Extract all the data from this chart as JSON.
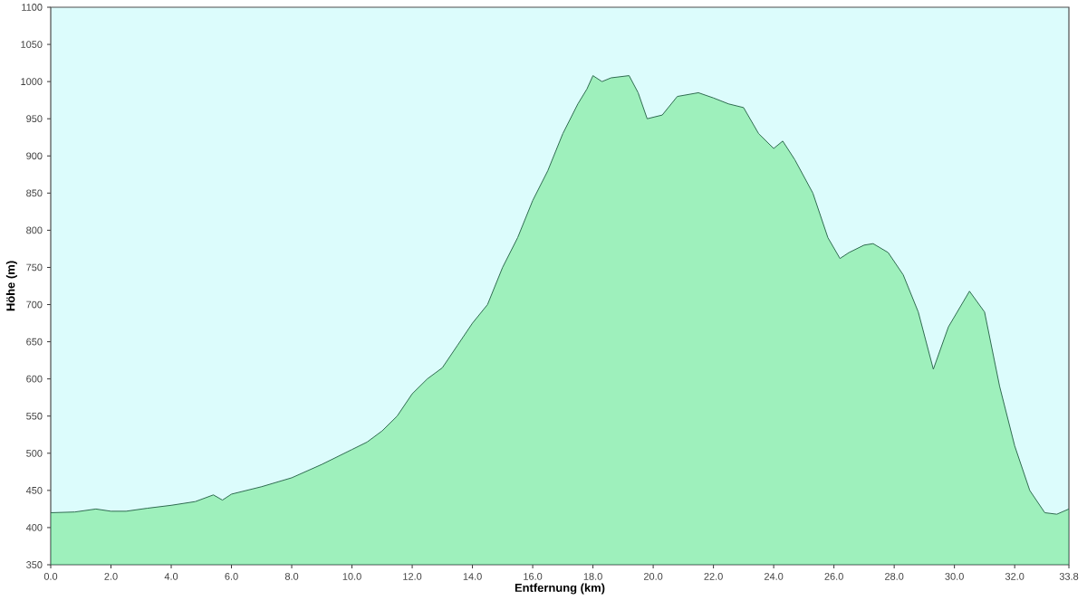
{
  "chart_data": {
    "type": "area",
    "xlabel": "Entfernung  (km)",
    "ylabel": "Höhe (m)",
    "x": [
      0,
      0.8,
      1.5,
      2.0,
      2.5,
      3.2,
      4.0,
      4.8,
      5.4,
      5.7,
      6.0,
      7.0,
      8.0,
      9.0,
      10.0,
      10.5,
      11.0,
      11.5,
      12.0,
      12.5,
      13.0,
      13.5,
      14.0,
      14.5,
      15.0,
      15.5,
      16.0,
      16.5,
      17.0,
      17.5,
      17.8,
      18.0,
      18.3,
      18.6,
      19.2,
      19.5,
      19.8,
      20.3,
      20.8,
      21.5,
      22.0,
      22.5,
      23.0,
      23.5,
      24.0,
      24.3,
      24.7,
      25.3,
      25.8,
      26.2,
      26.5,
      27.0,
      27.3,
      27.8,
      28.3,
      28.8,
      29.3,
      29.8,
      30.5,
      31.0,
      31.5,
      32.0,
      32.5,
      33.0,
      33.4,
      33.8
    ],
    "values": [
      420,
      421,
      425,
      422,
      422,
      426,
      430,
      435,
      444,
      437,
      445,
      455,
      467,
      485,
      505,
      515,
      530,
      550,
      580,
      600,
      615,
      645,
      675,
      700,
      750,
      790,
      840,
      880,
      930,
      970,
      990,
      1008,
      1000,
      1005,
      1008,
      985,
      950,
      955,
      980,
      985,
      978,
      970,
      965,
      930,
      910,
      920,
      895,
      850,
      790,
      762,
      770,
      780,
      782,
      770,
      740,
      690,
      613,
      670,
      718,
      690,
      590,
      510,
      450,
      420,
      418,
      425
    ],
    "color": "#9ef0bc",
    "xlim": [
      0,
      33.8
    ],
    "ylim": [
      350,
      1100
    ],
    "xticks": [
      {
        "value": 0,
        "label": "0.0"
      },
      {
        "value": 2,
        "label": "2.0"
      },
      {
        "value": 4,
        "label": "4.0"
      },
      {
        "value": 6,
        "label": "6.0"
      },
      {
        "value": 8,
        "label": "8.0"
      },
      {
        "value": 10,
        "label": "10.0"
      },
      {
        "value": 12,
        "label": "12.0"
      },
      {
        "value": 14,
        "label": "14.0"
      },
      {
        "value": 16,
        "label": "16.0"
      },
      {
        "value": 18,
        "label": "18.0"
      },
      {
        "value": 20,
        "label": "20.0"
      },
      {
        "value": 22,
        "label": "22.0"
      },
      {
        "value": 24,
        "label": "24.0"
      },
      {
        "value": 26,
        "label": "26.0"
      },
      {
        "value": 28,
        "label": "28.0"
      },
      {
        "value": 30,
        "label": "30.0"
      },
      {
        "value": 32,
        "label": "32.0"
      },
      {
        "value": 33.8,
        "label": "33.8"
      }
    ],
    "yticks": [
      350,
      400,
      450,
      500,
      550,
      600,
      650,
      700,
      750,
      800,
      850,
      900,
      950,
      1000,
      1050,
      1100
    ],
    "grid": false
  }
}
